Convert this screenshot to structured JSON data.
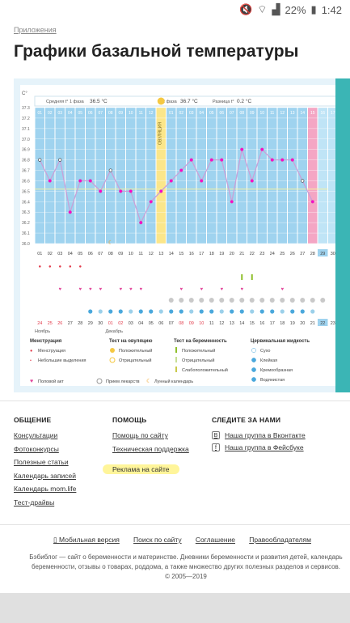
{
  "status": {
    "battery": "22%",
    "time": "1:42"
  },
  "breadcrumb": "Приложения",
  "page_title": "Графики базальной температуры",
  "chart": {
    "unit": "С°",
    "phase1_label": "Средняя t° 1 фаза",
    "phase1_value": "36.5 °C",
    "phase2_label": "2 фаза",
    "phase2_value": "36.7 °C",
    "diff_label": "Разница t°",
    "diff_value": "0.2 °C",
    "ovulation_label": "ОВУЛЯЦИЯ",
    "yticks": [
      "37.3",
      "37.2",
      "37.1",
      "37.0",
      "36.9",
      "36.8",
      "36.7",
      "36.6",
      "36.5",
      "36.4",
      "36.3",
      "36.2",
      "36.1",
      "36.0"
    ],
    "cycle_days": [
      "01",
      "02",
      "03",
      "04",
      "05",
      "06",
      "07",
      "08",
      "09",
      "10",
      "11",
      "12",
      "13",
      "01",
      "02",
      "03",
      "04",
      "05",
      "06",
      "07",
      "08",
      "09",
      "10",
      "11",
      "12",
      "13",
      "14",
      "15",
      "16",
      "17",
      "18"
    ],
    "dates": [
      "01",
      "02",
      "03",
      "04",
      "05",
      "06",
      "07",
      "08",
      "09",
      "10",
      "11",
      "12",
      "13",
      "14",
      "15",
      "16",
      "17",
      "18",
      "19",
      "20",
      "21",
      "22",
      "23",
      "24",
      "25",
      "26",
      "27",
      "28",
      "29",
      "30",
      "31"
    ],
    "dates2": [
      "24",
      "25",
      "26",
      "27",
      "28",
      "29",
      "30",
      "01",
      "02",
      "03",
      "04",
      "05",
      "06",
      "07",
      "08",
      "09",
      "10",
      "11",
      "12",
      "13",
      "14",
      "15",
      "16",
      "17",
      "18",
      "19",
      "20",
      "21",
      "22",
      "23",
      "24"
    ],
    "month1": "Ноябрь",
    "month2": "Декабрь",
    "colors": {
      "accent": "#3bb5b5",
      "bar": "#9fd3ef",
      "ovulation": "#fbe68a",
      "pink": "#f4a6c4",
      "line": "#c9a0d8"
    }
  },
  "chart_data": {
    "type": "line",
    "x": [
      1,
      2,
      3,
      4,
      5,
      6,
      7,
      8,
      9,
      10,
      11,
      12,
      13,
      14,
      15,
      16,
      17,
      18,
      19,
      20,
      21,
      22,
      23,
      24,
      25,
      26,
      27,
      28,
      29
    ],
    "values": [
      36.8,
      36.6,
      36.8,
      36.3,
      36.6,
      36.6,
      36.5,
      36.7,
      36.5,
      36.5,
      36.2,
      36.4,
      36.5,
      36.6,
      36.7,
      36.8,
      36.6,
      36.8,
      36.8,
      36.4,
      36.9,
      36.6,
      36.9,
      36.8,
      36.8,
      36.8,
      36.6,
      36.4,
      null
    ],
    "ylim": [
      36.0,
      37.3
    ]
  },
  "legend": {
    "menstruation_title": "Менструация",
    "menstruation": "Менструация",
    "spotting": "Небольшие выделения",
    "ovulation_title": "Тест на овуляцию",
    "positive": "Положительный",
    "negative": "Отрицательный",
    "pregnancy_title": "Тест на беременность",
    "preg_positive": "Положительный",
    "preg_negative": "Отрицательный",
    "preg_weak": "Слабоположительный",
    "fluid_title": "Цервикальная жидкость",
    "fluid_dry": "Сухо",
    "fluid_sticky": "Клейкая",
    "fluid_creamy": "Кремообразная",
    "fluid_watery": "Водянистая",
    "fluid_egg": "Яичный белок",
    "sex": "Половой акт",
    "meds": "Прием лекарств",
    "moon": "Лунный календарь"
  },
  "footer": {
    "col1_title": "ОБЩЕНИЕ",
    "col1": [
      "Консультации",
      "Фотоконкурсы",
      "Полезные статьи",
      "Календарь записей",
      "Календарь mom.life",
      "Тест-драйвы"
    ],
    "col2_title": "ПОМОЩЬ",
    "col2": [
      "Помощь по сайту",
      "Техническая поддержка"
    ],
    "col2_ad": "Реклама на сайте",
    "col3_title": "СЛЕДИТЕ ЗА НАМИ",
    "vk": "Наша группа в Вконтакте",
    "fb": "Наша группа в Фейсбуке",
    "mobile": "Мобильная версия",
    "search": "Поиск по сайту",
    "agreement": "Соглашение",
    "rights": "Правообладателям",
    "about": "Бэбиблог — сайт о беременности и материнстве. Дневники беременности и развития детей, календарь беременности, отзывы о товарах, роддома, а также множество других полезных разделов и сервисов.",
    "copyright": "© 2005—2019"
  }
}
